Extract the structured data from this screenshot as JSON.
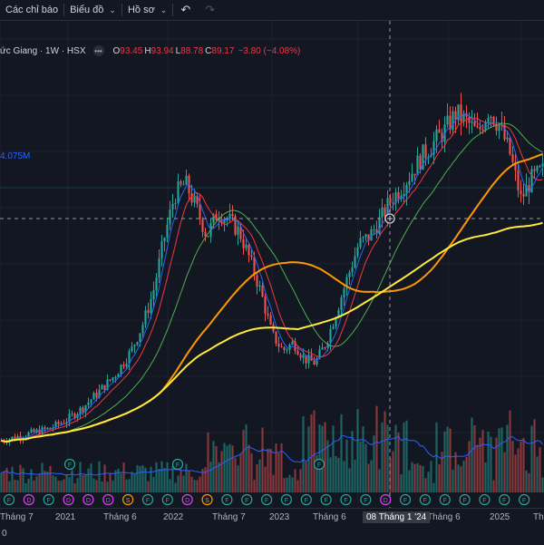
{
  "toolbar": {
    "indicators_label": "Các chỉ báo",
    "chart_type_label": "Biểu đồ",
    "profile_label": "Hồ sơ",
    "undo_icon": "undo-icon",
    "redo_icon": "redo-icon"
  },
  "legend": {
    "symbol": "ức Giang · 1W · HSX",
    "open_key": "O",
    "open": "93.45",
    "high_key": "H",
    "high": "93.94",
    "low_key": "L",
    "low": "88.78",
    "close_key": "C",
    "close": "89.17",
    "change": "−3.80 (−4.08%)"
  },
  "volume_label": "4.075M",
  "xaxis": {
    "labels": [
      {
        "text": "Tháng 7",
        "pos": 0.0
      },
      {
        "text": "2021",
        "pos": 0.102
      },
      {
        "text": "Tháng 6",
        "pos": 0.19
      },
      {
        "text": "2022",
        "pos": 0.3
      },
      {
        "text": "Tháng 7",
        "pos": 0.39
      },
      {
        "text": "2023",
        "pos": 0.495
      },
      {
        "text": "Tháng 6",
        "pos": 0.575
      },
      {
        "text": "Tháng 6",
        "pos": 0.785
      },
      {
        "text": "2025",
        "pos": 0.9
      },
      {
        "text": "Th",
        "pos": 0.99
      }
    ],
    "cursor_label": "08 Tháng 1 '24",
    "bottom_left": "0"
  },
  "events": {
    "markers": [
      {
        "t": "F",
        "c": "#26a69a"
      },
      {
        "t": "D",
        "c": "#e040fb"
      },
      {
        "t": "F",
        "c": "#26a69a"
      },
      {
        "t": "D",
        "c": "#e040fb"
      },
      {
        "t": "D",
        "c": "#e040fb"
      },
      {
        "t": "D",
        "c": "#e040fb"
      },
      {
        "t": "S",
        "c": "#ff9800"
      },
      {
        "t": "F",
        "c": "#26a69a"
      },
      {
        "t": "F",
        "c": "#26a69a"
      },
      {
        "t": "D",
        "c": "#e040fb"
      },
      {
        "t": "S",
        "c": "#ff9800"
      },
      {
        "t": "F",
        "c": "#26a69a"
      },
      {
        "t": "F",
        "c": "#26a69a"
      },
      {
        "t": "F",
        "c": "#26a69a"
      },
      {
        "t": "F",
        "c": "#26a69a"
      },
      {
        "t": "F",
        "c": "#26a69a"
      },
      {
        "t": "F",
        "c": "#26a69a"
      },
      {
        "t": "F",
        "c": "#26a69a"
      },
      {
        "t": "F",
        "c": "#26a69a"
      },
      {
        "t": "D",
        "c": "#e040fb"
      },
      {
        "t": "F",
        "c": "#26a69a"
      },
      {
        "t": "F",
        "c": "#26a69a"
      },
      {
        "t": "F",
        "c": "#26a69a"
      },
      {
        "t": "F",
        "c": "#26a69a"
      },
      {
        "t": "F",
        "c": "#26a69a"
      },
      {
        "t": "F",
        "c": "#26a69a"
      },
      {
        "t": "F",
        "c": "#26a69a"
      }
    ],
    "upper_markers": [
      {
        "t": "F",
        "c": "#26a69a"
      },
      {
        "t": "F",
        "c": "#26a69a"
      },
      {
        "t": "F",
        "c": "#26a69a"
      }
    ]
  },
  "colors": {
    "up": "#26a69a",
    "down": "#ef5350",
    "ma_blue": "#2962ff",
    "ma_red": "#f23645",
    "ma_green": "#4caf50",
    "ma_orange": "#ff9800",
    "ma_yellow": "#ffeb3b",
    "vol_ma": "#2962ff"
  },
  "chart_data": {
    "type": "candlestick",
    "title": "",
    "price_path": [
      [
        0.0,
        0.36
      ],
      [
        0.03,
        0.37
      ],
      [
        0.06,
        0.38
      ],
      [
        0.09,
        0.39
      ],
      [
        0.12,
        0.41
      ],
      [
        0.15,
        0.44
      ],
      [
        0.18,
        0.48
      ],
      [
        0.21,
        0.52
      ],
      [
        0.24,
        0.58
      ],
      [
        0.26,
        0.64
      ],
      [
        0.28,
        0.72
      ],
      [
        0.3,
        0.85
      ],
      [
        0.32,
        0.96
      ],
      [
        0.34,
        0.99
      ],
      [
        0.36,
        0.93
      ],
      [
        0.38,
        0.86
      ],
      [
        0.4,
        0.92
      ],
      [
        0.42,
        0.9
      ],
      [
        0.44,
        0.87
      ],
      [
        0.46,
        0.8
      ],
      [
        0.48,
        0.72
      ],
      [
        0.5,
        0.62
      ],
      [
        0.52,
        0.58
      ],
      [
        0.54,
        0.6
      ],
      [
        0.56,
        0.56
      ],
      [
        0.58,
        0.55
      ],
      [
        0.6,
        0.6
      ],
      [
        0.62,
        0.68
      ],
      [
        0.64,
        0.76
      ],
      [
        0.66,
        0.84
      ],
      [
        0.68,
        0.86
      ],
      [
        0.7,
        0.9
      ],
      [
        0.72,
        0.95
      ],
      [
        0.74,
        0.98
      ],
      [
        0.76,
        1.02
      ],
      [
        0.78,
        1.06
      ],
      [
        0.8,
        1.09
      ],
      [
        0.82,
        1.12
      ],
      [
        0.84,
        1.16
      ],
      [
        0.86,
        1.14
      ],
      [
        0.88,
        1.11
      ],
      [
        0.9,
        1.17
      ],
      [
        0.92,
        1.13
      ],
      [
        0.94,
        1.06
      ],
      [
        0.96,
        0.95
      ],
      [
        0.98,
        1.0
      ],
      [
        1.0,
        1.02
      ]
    ]
  }
}
